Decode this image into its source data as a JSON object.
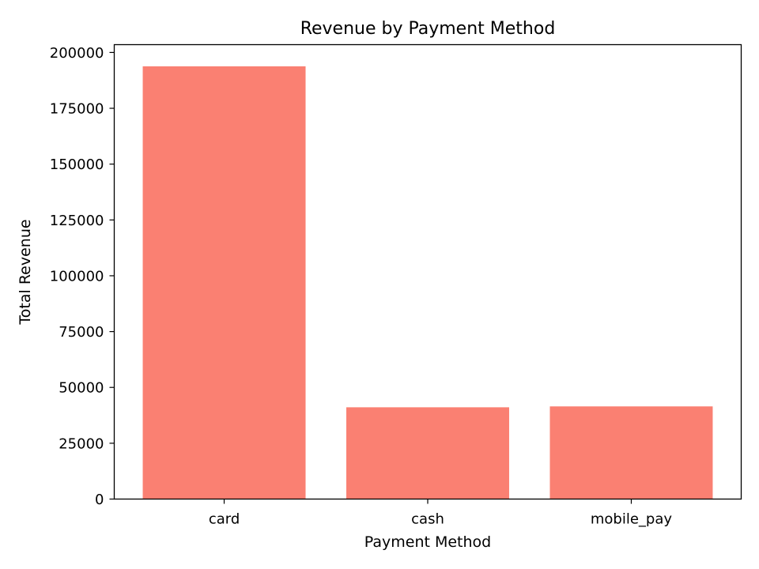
{
  "chart_data": {
    "type": "bar",
    "title": "Revenue by Payment Method",
    "xlabel": "Payment Method",
    "ylabel": "Total Revenue",
    "categories": [
      "card",
      "cash",
      "mobile_pay"
    ],
    "values": [
      193800,
      41100,
      41500
    ],
    "ylim": [
      0,
      203500
    ],
    "yticks": [
      0,
      25000,
      50000,
      75000,
      100000,
      125000,
      150000,
      175000,
      200000
    ],
    "bar_color": "#fa8072",
    "grid": false,
    "legend": "none"
  }
}
